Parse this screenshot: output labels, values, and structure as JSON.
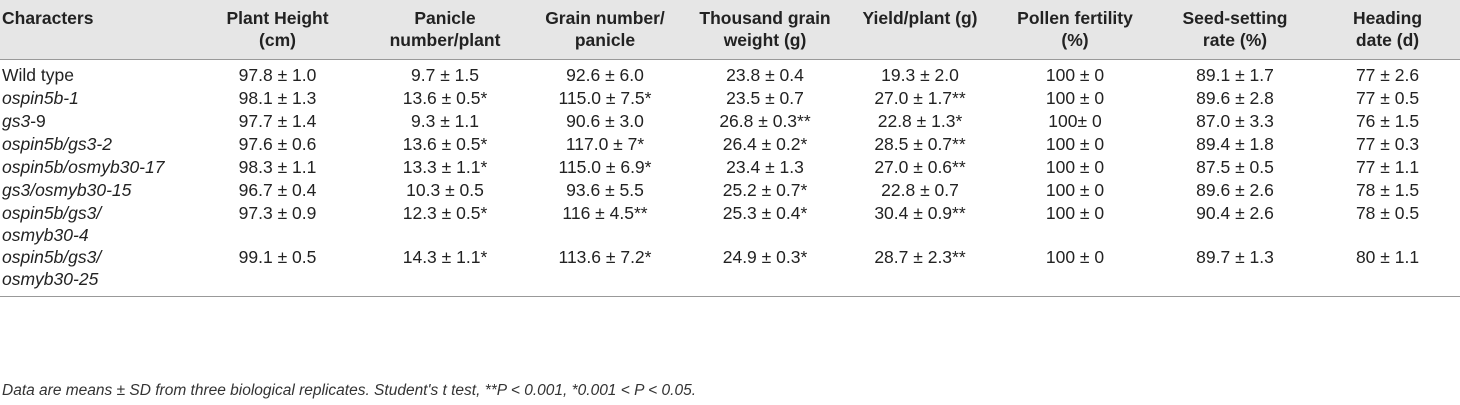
{
  "table": {
    "headers": [
      [
        "Characters",
        ""
      ],
      [
        "Plant Height",
        "(cm)"
      ],
      [
        "Panicle",
        "number/plant"
      ],
      [
        "Grain number/",
        "panicle"
      ],
      [
        "Thousand grain",
        "weight (g)"
      ],
      [
        "Yield/plant (g)",
        ""
      ],
      [
        "Pollen fertility",
        "(%)"
      ],
      [
        "Seed-setting",
        "rate (%)"
      ],
      [
        "Heading",
        "date (d)"
      ]
    ],
    "rows": [
      {
        "name": [
          "Wild type",
          ""
        ],
        "values": [
          "97.8 ± 1.0",
          "9.7 ± 1.5",
          "92.6 ± 6.0",
          "23.8 ± 0.4",
          "19.3 ± 2.0",
          "100 ± 0",
          "89.1 ± 1.7",
          "77 ± 2.6"
        ]
      },
      {
        "name": [
          "ospin5b-1",
          ""
        ],
        "values": [
          "98.1 ± 1.3",
          "13.6 ± 0.5*",
          "115.0 ± 7.5*",
          "23.5 ± 0.7",
          "27.0 ± 1.7**",
          "100 ± 0",
          "89.6 ± 2.8",
          "77 ± 0.5"
        ]
      },
      {
        "name": [
          "gs3",
          "-9"
        ],
        "values": [
          "97.7 ± 1.4",
          "9.3 ± 1.1",
          "90.6 ± 3.0",
          "26.8 ± 0.3**",
          "22.8 ± 1.3*",
          "100± 0",
          "87.0 ± 3.3",
          "76 ± 1.5"
        ]
      },
      {
        "name": [
          "ospin5b/gs3-2",
          ""
        ],
        "values": [
          "97.6 ± 0.6",
          "13.6 ± 0.5*",
          "117.0 ± 7*",
          "26.4 ± 0.2*",
          "28.5 ± 0.7**",
          "100 ± 0",
          "89.4 ± 1.8",
          "77 ± 0.3"
        ]
      },
      {
        "name": [
          "ospin5b/osmyb30-17",
          ""
        ],
        "values": [
          "98.3 ± 1.1",
          "13.3 ± 1.1*",
          "115.0 ± 6.9*",
          "23.4 ± 1.3",
          "27.0 ± 0.6**",
          "100 ± 0",
          "87.5 ± 0.5",
          "77 ± 1.1"
        ]
      },
      {
        "name": [
          "gs3/osmyb30-15",
          ""
        ],
        "values": [
          "96.7 ± 0.4",
          "10.3 ± 0.5",
          "93.6 ± 5.5",
          "25.2 ± 0.7*",
          "22.8 ± 0.7",
          "100 ± 0",
          "89.6 ± 2.6",
          "78 ± 1.5"
        ]
      },
      {
        "name": [
          "ospin5b/gs3/",
          "osmyb30-4"
        ],
        "values": [
          "97.3 ± 0.9",
          "12.3 ± 0.5*",
          "116 ± 4.5**",
          "25.3 ± 0.4*",
          "30.4 ± 0.9**",
          "100 ± 0",
          "90.4 ± 2.6",
          "78 ± 0.5"
        ]
      },
      {
        "name": [
          "ospin5b/gs3/",
          "osmyb30-25"
        ],
        "values": [
          "99.1 ± 0.5",
          "14.3 ± 1.1*",
          "113.6 ± 7.2*",
          "24.9 ± 0.3*",
          "28.7 ± 2.3**",
          "100 ± 0",
          "89.7 ± 1.3",
          "80 ± 1.1"
        ]
      }
    ]
  },
  "footnote": "Data are means ± SD from three biological replicates. Student's t test, **P < 0.001, *0.001 < P < 0.05."
}
